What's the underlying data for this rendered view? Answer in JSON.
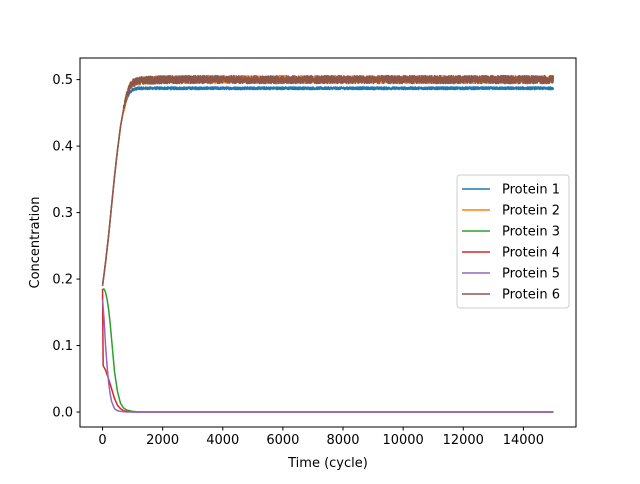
{
  "chart_data": {
    "type": "line",
    "title": "",
    "xlabel": "Time (cycle)",
    "ylabel": "Concentration",
    "xlim": [
      -750,
      15750
    ],
    "ylim": [
      -0.0225,
      0.5325
    ],
    "x_ticks": [
      0,
      2000,
      4000,
      6000,
      8000,
      10000,
      12000,
      14000
    ],
    "y_ticks": [
      0.0,
      0.1,
      0.2,
      0.3,
      0.4,
      0.5
    ],
    "x_tick_labels": [
      "0",
      "2000",
      "4000",
      "6000",
      "8000",
      "10000",
      "12000",
      "14000"
    ],
    "y_tick_labels": [
      "0.0",
      "0.1",
      "0.2",
      "0.3",
      "0.4",
      "0.5"
    ],
    "grid": false,
    "legend_position": "center-right",
    "series": [
      {
        "name": "Protein 1",
        "color": "#1f77b4",
        "x": [
          0,
          100,
          200,
          300,
          400,
          500,
          600,
          700,
          800,
          900,
          1000,
          1200,
          1500,
          2000,
          3000,
          5000,
          8000,
          11000,
          15000
        ],
        "values": [
          0.19,
          0.225,
          0.265,
          0.31,
          0.355,
          0.395,
          0.43,
          0.455,
          0.47,
          0.48,
          0.485,
          0.487,
          0.487,
          0.487,
          0.487,
          0.487,
          0.487,
          0.487,
          0.487
        ],
        "noise": 0.002
      },
      {
        "name": "Protein 2",
        "color": "#ff7f0e",
        "x": [
          0,
          100,
          200,
          300,
          400,
          500,
          600,
          700,
          800,
          900,
          1000,
          1200,
          1500,
          2000,
          3000,
          5000,
          8000,
          11000,
          15000
        ],
        "values": [
          0.19,
          0.225,
          0.265,
          0.31,
          0.355,
          0.395,
          0.43,
          0.455,
          0.475,
          0.488,
          0.495,
          0.498,
          0.499,
          0.5,
          0.5,
          0.5,
          0.5,
          0.5,
          0.5
        ],
        "noise": 0.006
      },
      {
        "name": "Protein 3",
        "color": "#2ca02c",
        "x": [
          0,
          50,
          100,
          150,
          200,
          250,
          300,
          350,
          400,
          500,
          600,
          700,
          800,
          1000,
          1200,
          2000,
          15000
        ],
        "values": [
          0.185,
          0.185,
          0.18,
          0.17,
          0.155,
          0.135,
          0.11,
          0.085,
          0.06,
          0.03,
          0.013,
          0.006,
          0.003,
          0.001,
          0.0,
          0.0,
          0.0
        ],
        "noise": 0
      },
      {
        "name": "Protein 4",
        "color": "#d62728",
        "x": [
          0,
          20,
          40,
          100,
          200,
          300,
          400,
          500,
          600,
          700,
          800,
          1000,
          1200,
          2000,
          15000
        ],
        "values": [
          0.185,
          0.07,
          0.068,
          0.063,
          0.05,
          0.035,
          0.02,
          0.01,
          0.005,
          0.002,
          0.001,
          0.0,
          0.0,
          0.0,
          0.0
        ],
        "noise": 0
      },
      {
        "name": "Protein 5",
        "color": "#9467bd",
        "x": [
          0,
          50,
          100,
          150,
          200,
          250,
          300,
          400,
          500,
          600,
          800,
          1000,
          2000,
          15000
        ],
        "values": [
          0.17,
          0.14,
          0.1,
          0.07,
          0.045,
          0.028,
          0.016,
          0.005,
          0.002,
          0.001,
          0.0,
          0.0,
          0.0,
          0.0
        ],
        "noise": 0
      },
      {
        "name": "Protein 6",
        "color": "#8c564b",
        "x": [
          0,
          100,
          200,
          300,
          400,
          500,
          600,
          700,
          800,
          900,
          1000,
          1200,
          1500,
          2000,
          3000,
          5000,
          8000,
          11000,
          15000
        ],
        "values": [
          0.19,
          0.225,
          0.265,
          0.31,
          0.355,
          0.395,
          0.43,
          0.455,
          0.475,
          0.488,
          0.495,
          0.498,
          0.499,
          0.5,
          0.5,
          0.5,
          0.5,
          0.5,
          0.5
        ],
        "noise": 0.006
      }
    ]
  }
}
